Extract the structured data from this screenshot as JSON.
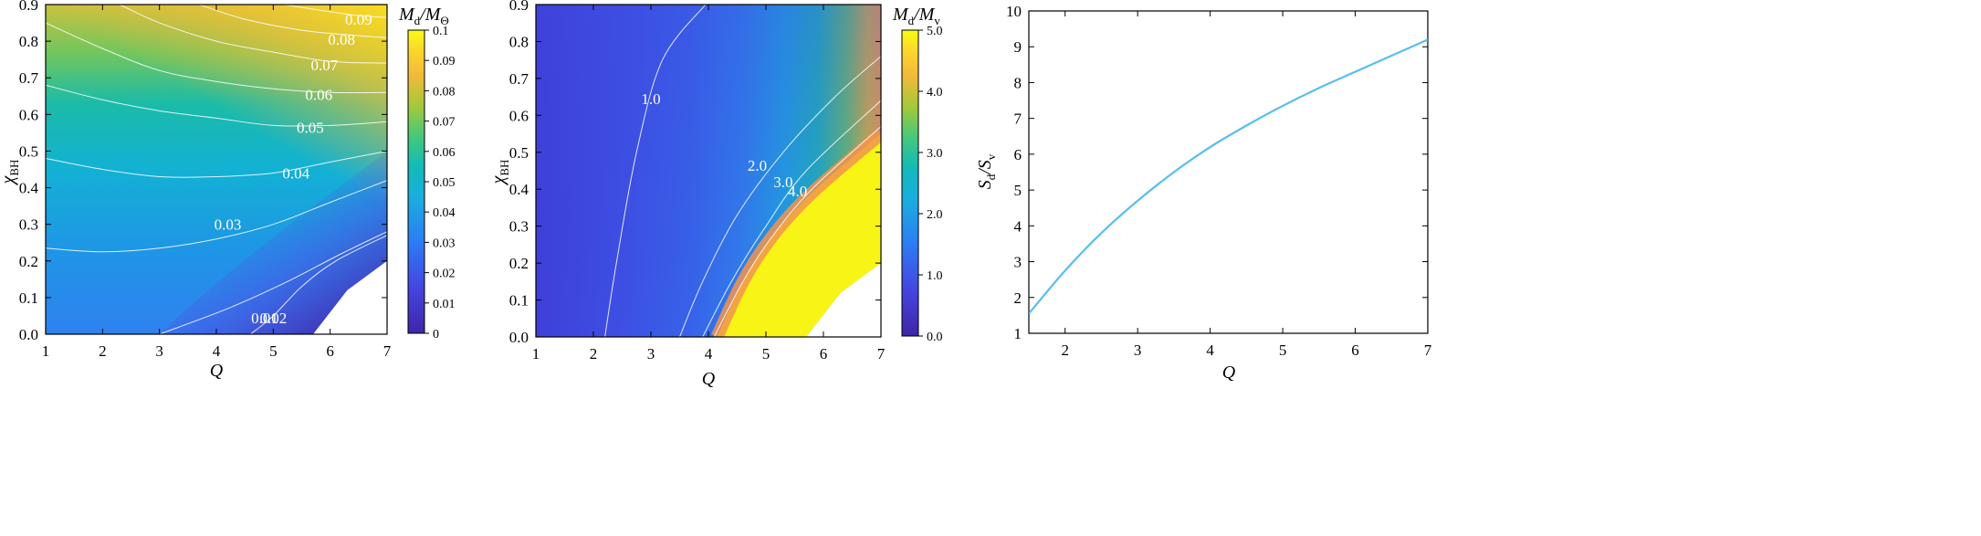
{
  "chart_data": [
    {
      "type": "heatmap",
      "xlabel": "Q",
      "ylabel": "χ",
      "ylabel_sub": "BH",
      "xlim": [
        1,
        7
      ],
      "ylim": [
        0,
        0.9
      ],
      "xticks": [
        "1",
        "2",
        "3",
        "4",
        "5",
        "6",
        "7"
      ],
      "yticks": [
        "0.0",
        "0.1",
        "0.2",
        "0.3",
        "0.4",
        "0.5",
        "0.6",
        "0.7",
        "0.8",
        "0.9"
      ],
      "colorbar": {
        "title_main": "M",
        "title_sub": "d",
        "title_sep": "/M",
        "title_sub2": "Θ",
        "range": [
          0,
          0.1
        ],
        "ticks": [
          "0",
          "0.01",
          "0.02",
          "0.03",
          "0.04",
          "0.05",
          "0.06",
          "0.07",
          "0.08",
          "0.09",
          "0.1"
        ]
      },
      "contours": [
        {
          "label": "0.01",
          "value": 0.01,
          "points": [
            [
              3.0,
              0.0
            ],
            [
              4.2,
              0.07
            ],
            [
              5.2,
              0.14
            ],
            [
              6.2,
              0.22
            ],
            [
              7.0,
              0.28
            ]
          ],
          "label_at": [
            4.85,
            0.045
          ]
        },
        {
          "label": "0.02",
          "value": 0.02,
          "points": [
            [
              4.6,
              0.0
            ],
            [
              5.0,
              0.05
            ],
            [
              5.5,
              0.13
            ],
            [
              6.1,
              0.2
            ],
            [
              7.0,
              0.27
            ]
          ],
          "label_at": [
            5.0,
            0.045
          ]
        },
        {
          "label": "0.03",
          "value": 0.03,
          "points": [
            [
              1.0,
              0.235
            ],
            [
              2.0,
              0.225
            ],
            [
              3.0,
              0.235
            ],
            [
              4.0,
              0.26
            ],
            [
              5.0,
              0.3
            ],
            [
              6.0,
              0.36
            ],
            [
              7.0,
              0.42
            ]
          ],
          "label_at": [
            4.2,
            0.3
          ]
        },
        {
          "label": "0.04",
          "value": 0.04,
          "points": [
            [
              1.0,
              0.48
            ],
            [
              2.0,
              0.45
            ],
            [
              3.0,
              0.43
            ],
            [
              4.0,
              0.43
            ],
            [
              5.0,
              0.44
            ],
            [
              6.0,
              0.47
            ],
            [
              7.0,
              0.5
            ]
          ],
          "label_at": [
            5.4,
            0.44
          ]
        },
        {
          "label": "0.05",
          "value": 0.05,
          "points": [
            [
              1.0,
              0.68
            ],
            [
              2.0,
              0.64
            ],
            [
              3.0,
              0.61
            ],
            [
              4.0,
              0.59
            ],
            [
              5.0,
              0.57
            ],
            [
              6.0,
              0.57
            ],
            [
              7.0,
              0.58
            ]
          ],
          "label_at": [
            5.65,
            0.565
          ]
        },
        {
          "label": "0.06",
          "value": 0.06,
          "points": [
            [
              1.0,
              0.85
            ],
            [
              2.0,
              0.78
            ],
            [
              3.0,
              0.72
            ],
            [
              4.0,
              0.69
            ],
            [
              5.0,
              0.67
            ],
            [
              6.0,
              0.66
            ],
            [
              7.0,
              0.66
            ]
          ],
          "label_at": [
            5.8,
            0.655
          ]
        },
        {
          "label": "0.07",
          "value": 0.07,
          "points": [
            [
              2.3,
              0.9
            ],
            [
              3.0,
              0.85
            ],
            [
              4.0,
              0.8
            ],
            [
              5.0,
              0.77
            ],
            [
              6.0,
              0.745
            ],
            [
              7.0,
              0.74
            ]
          ],
          "label_at": [
            5.9,
            0.735
          ]
        },
        {
          "label": "0.08",
          "value": 0.08,
          "points": [
            [
              3.7,
              0.9
            ],
            [
              4.5,
              0.86
            ],
            [
              5.5,
              0.83
            ],
            [
              6.5,
              0.815
            ],
            [
              7.0,
              0.81
            ]
          ],
          "label_at": [
            6.2,
            0.805
          ]
        },
        {
          "label": "0.09",
          "value": 0.09,
          "points": [
            [
              5.2,
              0.9
            ],
            [
              5.8,
              0.885
            ],
            [
              6.5,
              0.87
            ],
            [
              7.0,
              0.865
            ]
          ],
          "label_at": [
            6.5,
            0.86
          ]
        }
      ],
      "blank_region": [
        [
          5.7,
          0.0
        ],
        [
          7.0,
          0.0
        ],
        [
          7.0,
          0.2
        ],
        [
          6.3,
          0.12
        ]
      ]
    },
    {
      "type": "heatmap",
      "xlabel": "Q",
      "ylabel": "χ",
      "ylabel_sub": "BH",
      "xlim": [
        1,
        7
      ],
      "ylim": [
        0,
        0.9
      ],
      "xticks": [
        "1",
        "2",
        "3",
        "4",
        "5",
        "6",
        "7"
      ],
      "yticks": [
        "0.0",
        "0.1",
        "0.2",
        "0.3",
        "0.4",
        "0.5",
        "0.6",
        "0.7",
        "0.8",
        "0.9"
      ],
      "colorbar": {
        "title_main": "M",
        "title_sub": "d",
        "title_sep": "/M",
        "title_sub2": "v",
        "range": [
          0,
          5.0
        ],
        "ticks": [
          "0.0",
          "1.0",
          "2.0",
          "3.0",
          "4.0",
          "5.0"
        ]
      },
      "contours": [
        {
          "label": "1.0",
          "value": 1.0,
          "points": [
            [
              2.2,
              0.0
            ],
            [
              2.4,
              0.2
            ],
            [
              2.75,
              0.5
            ],
            [
              3.2,
              0.75
            ],
            [
              3.95,
              0.9
            ]
          ],
          "label_at": [
            3.0,
            0.645
          ]
        },
        {
          "label": "2.0",
          "value": 2.0,
          "points": [
            [
              3.5,
              0.0
            ],
            [
              3.9,
              0.15
            ],
            [
              4.5,
              0.33
            ],
            [
              5.3,
              0.5
            ],
            [
              6.2,
              0.65
            ],
            [
              7.0,
              0.76
            ]
          ],
          "label_at": [
            4.85,
            0.465
          ]
        },
        {
          "label": "3.0",
          "value": 3.0,
          "points": [
            [
              3.9,
              0.0
            ],
            [
              4.4,
              0.15
            ],
            [
              5.0,
              0.3
            ],
            [
              5.7,
              0.45
            ],
            [
              7.0,
              0.64
            ]
          ],
          "label_at": [
            5.3,
            0.42
          ]
        },
        {
          "label": "4.0",
          "value": 4.0,
          "points": [
            [
              4.1,
              0.0
            ],
            [
              4.6,
              0.15
            ],
            [
              5.1,
              0.27
            ],
            [
              5.8,
              0.4
            ],
            [
              7.0,
              0.57
            ]
          ],
          "label_at": [
            5.55,
            0.395
          ]
        }
      ],
      "saturated_region": [
        [
          4.15,
          0.0
        ],
        [
          4.6,
          0.15
        ],
        [
          5.1,
          0.27
        ],
        [
          5.8,
          0.39
        ],
        [
          7.0,
          0.55
        ],
        [
          7.0,
          0.2
        ],
        [
          6.3,
          0.12
        ],
        [
          5.7,
          0.0
        ]
      ],
      "blank_region": [
        [
          5.7,
          0.0
        ],
        [
          7.0,
          0.0
        ],
        [
          7.0,
          0.2
        ],
        [
          6.3,
          0.12
        ]
      ]
    },
    {
      "type": "line",
      "xlabel": "Q",
      "ylabel_main": "S",
      "ylabel_sub": "d",
      "ylabel_sep": "/S",
      "ylabel_sub2": "v",
      "xlim": [
        1.5,
        7
      ],
      "ylim": [
        1,
        10
      ],
      "xticks": [
        "2",
        "3",
        "4",
        "5",
        "6",
        "7"
      ],
      "xtick_values": [
        2,
        3,
        4,
        5,
        6,
        7
      ],
      "yticks": [
        "1",
        "2",
        "3",
        "4",
        "5",
        "6",
        "7",
        "8",
        "9",
        "10"
      ],
      "line_color": "#58bfee",
      "x": [
        1.5,
        2.0,
        2.5,
        3.0,
        3.5,
        4.0,
        4.5,
        5.0,
        5.5,
        6.0,
        6.5,
        7.0
      ],
      "y": [
        1.55,
        2.75,
        3.8,
        4.7,
        5.5,
        6.2,
        6.8,
        7.35,
        7.85,
        8.3,
        8.75,
        9.2
      ]
    }
  ]
}
